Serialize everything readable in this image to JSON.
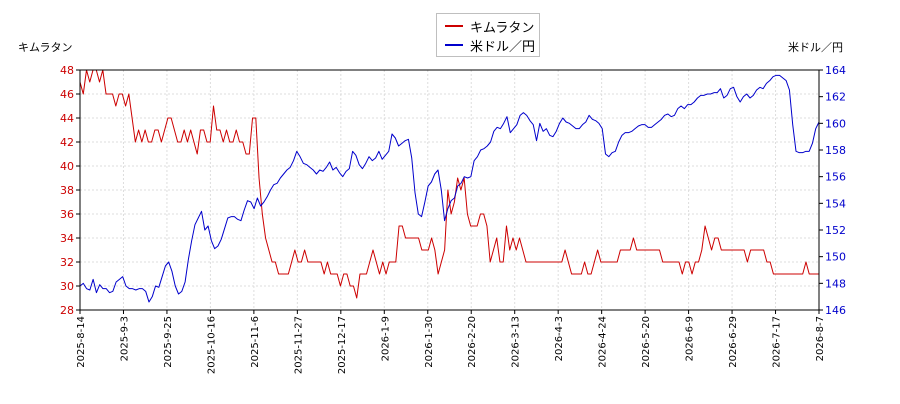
{
  "chart_data": {
    "type": "line",
    "x_labels": [
      "2025-8-14",
      "2025-9-3",
      "2025-9-25",
      "2025-10-16",
      "2025-11-6",
      "2025-11-27",
      "2025-12-17",
      "2026-1-9",
      "2026-1-30",
      "2026-2-20",
      "2026-3-13",
      "2026-4-3",
      "2026-4-24",
      "2026-5-20",
      "2026-6-9",
      "2026-6-29",
      "2026-7-17",
      "2026-8-7"
    ],
    "left_axis": {
      "label": "キムラタン",
      "ylim": [
        28,
        48
      ],
      "ticks": [
        28,
        30,
        32,
        34,
        36,
        38,
        40,
        42,
        44,
        46,
        48
      ],
      "color": "#cc0000"
    },
    "right_axis": {
      "label": "米ドル／円",
      "ylim": [
        146,
        164
      ],
      "ticks": [
        146,
        148,
        150,
        152,
        154,
        156,
        158,
        160,
        162,
        164
      ],
      "color": "#0000cc"
    },
    "grid": true,
    "legend_position": "top-center",
    "series": [
      {
        "name": "キムラタン",
        "color": "#cc0000",
        "axis": "left",
        "values": [
          47,
          46,
          48,
          47,
          48,
          48,
          47,
          48,
          46,
          46,
          46,
          45,
          46,
          46,
          45,
          46,
          44,
          42,
          43,
          42,
          43,
          42,
          42,
          43,
          43,
          42,
          43,
          44,
          44,
          43,
          42,
          42,
          43,
          42,
          43,
          42,
          41,
          43,
          43,
          42,
          42,
          45,
          43,
          43,
          42,
          43,
          42,
          42,
          43,
          42,
          42,
          41,
          41,
          44,
          44,
          39,
          36,
          34,
          33,
          32,
          32,
          31,
          31,
          31,
          31,
          32,
          33,
          32,
          32,
          33,
          32,
          32,
          32,
          32,
          32,
          31,
          32,
          31,
          31,
          31,
          30,
          31,
          31,
          30,
          30,
          29,
          31,
          31,
          31,
          32,
          33,
          32,
          31,
          32,
          31,
          32,
          32,
          32,
          35,
          35,
          34,
          34,
          34,
          34,
          34,
          33,
          33,
          33,
          34,
          33,
          31,
          32,
          33,
          38,
          36,
          37,
          39,
          38,
          39,
          36,
          35,
          35,
          35,
          36,
          36,
          35,
          32,
          33,
          34,
          32,
          32,
          35,
          33,
          34,
          33,
          34,
          33,
          32,
          32,
          32,
          32,
          32,
          32,
          32,
          32,
          32,
          32,
          32,
          32,
          33,
          32,
          31,
          31,
          31,
          31,
          32,
          31,
          31,
          32,
          33,
          32,
          32,
          32,
          32,
          32,
          32,
          33,
          33,
          33,
          33,
          34,
          33,
          33,
          33,
          33,
          33,
          33,
          33,
          33,
          32,
          32,
          32,
          32,
          32,
          32,
          31,
          32,
          32,
          31,
          32,
          32,
          33,
          35,
          34,
          33,
          34,
          34,
          33,
          33,
          33,
          33,
          33,
          33,
          33,
          33,
          32,
          33,
          33,
          33,
          33,
          33,
          32,
          32,
          31,
          31,
          31,
          31,
          31,
          31,
          31,
          31,
          31,
          31,
          32,
          31,
          31,
          31,
          31
        ]
      },
      {
        "name": "米ドル／円",
        "color": "#0000cc",
        "axis": "right",
        "values": [
          147.8,
          148.0,
          147.6,
          147.5,
          148.3,
          147.3,
          147.9,
          147.6,
          147.6,
          147.3,
          147.4,
          148.1,
          148.3,
          148.5,
          147.8,
          147.6,
          147.6,
          147.5,
          147.6,
          147.6,
          147.4,
          146.6,
          147.0,
          147.8,
          147.7,
          148.5,
          149.3,
          149.6,
          148.9,
          147.8,
          147.2,
          147.4,
          148.1,
          149.8,
          151.2,
          152.4,
          152.9,
          153.4,
          152.0,
          152.3,
          151.2,
          150.6,
          150.8,
          151.3,
          152.1,
          152.9,
          153.0,
          153.0,
          152.8,
          152.7,
          153.5,
          154.2,
          154.1,
          153.6,
          154.4,
          153.8,
          154.1,
          154.5,
          155.0,
          155.4,
          155.5,
          155.9,
          156.2,
          156.5,
          156.7,
          157.2,
          157.9,
          157.5,
          157.0,
          156.9,
          156.7,
          156.5,
          156.2,
          156.5,
          156.4,
          156.7,
          157.1,
          156.5,
          156.7,
          156.3,
          156.0,
          156.4,
          156.6,
          157.9,
          157.6,
          156.9,
          156.6,
          157.0,
          157.5,
          157.2,
          157.4,
          157.9,
          157.3,
          157.6,
          157.9,
          159.2,
          158.9,
          158.3,
          158.5,
          158.7,
          158.8,
          157.4,
          154.8,
          153.2,
          153.0,
          154.1,
          155.3,
          155.6,
          156.2,
          156.5,
          155.0,
          152.7,
          153.6,
          154.2,
          154.4,
          155.3,
          155.5,
          156.0,
          155.9,
          156.0,
          157.2,
          157.5,
          158.0,
          158.1,
          158.3,
          158.6,
          159.4,
          159.7,
          159.6,
          160.0,
          160.5,
          159.3,
          159.6,
          159.9,
          160.6,
          160.8,
          160.6,
          160.2,
          159.9,
          158.7,
          160.0,
          159.4,
          159.6,
          159.1,
          159.0,
          159.4,
          160.0,
          160.4,
          160.1,
          160.0,
          159.8,
          159.6,
          159.6,
          159.9,
          160.1,
          160.6,
          160.3,
          160.2,
          160.0,
          159.6,
          157.7,
          157.5,
          157.8,
          157.9,
          158.6,
          159.1,
          159.3,
          159.3,
          159.4,
          159.6,
          159.8,
          159.9,
          159.9,
          159.7,
          159.7,
          159.9,
          160.1,
          160.3,
          160.6,
          160.7,
          160.5,
          160.6,
          161.1,
          161.3,
          161.1,
          161.4,
          161.4,
          161.6,
          161.9,
          162.1,
          162.1,
          162.2,
          162.2,
          162.3,
          162.3,
          162.6,
          161.9,
          162.1,
          162.6,
          162.7,
          162.0,
          161.6,
          162.0,
          162.2,
          161.9,
          162.1,
          162.5,
          162.7,
          162.6,
          163.0,
          163.2,
          163.5,
          163.6,
          163.6,
          163.4,
          163.2,
          162.5,
          159.9,
          157.9,
          157.8,
          157.8,
          157.9,
          157.9,
          158.5,
          159.6,
          160.1
        ]
      }
    ]
  }
}
